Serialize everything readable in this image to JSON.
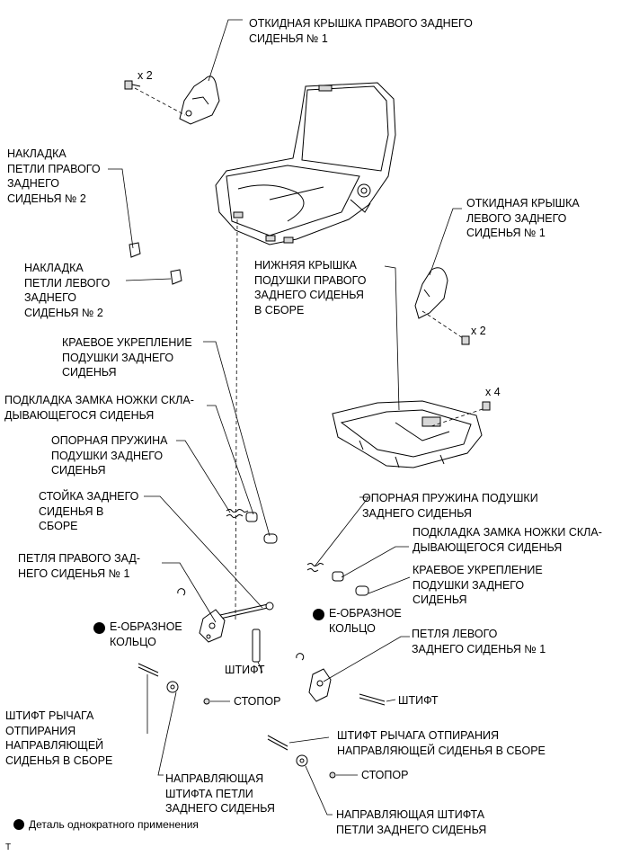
{
  "labels": {
    "right_cover": "ОТКИДНАЯ КРЫШКА ПРАВОГО ЗАДНЕГО\nСИДЕНЬЯ № 1",
    "left_cover": "ОТКИДНАЯ КРЫШКА\nЛЕВОГО ЗАДНЕГО\nСИДЕНЬЯ № 1",
    "right_hinge_cover": "НАКЛАДКА\nПЕТЛИ ПРАВОГО\nЗАДНЕГО\nСИДЕНЬЯ № 2",
    "left_hinge_cover": "НАКЛАДКА\nПЕТЛИ ЛЕВОГО\nЗАДНЕГО\nСИДЕНЬЯ № 2",
    "lower_cushion_cover": "НИЖНЯЯ КРЫШКА\nПОДУШКИ ПРАВОГО\nЗАДНЕГО СИДЕНЬЯ\nВ СБОРЕ",
    "cushion_edge_left": "КРАЕВОЕ УКРЕПЛЕНИЕ\nПОДУШКИ ЗАДНЕГО\nСИДЕНЬЯ",
    "leg_lock_pad_left": "ПОДКЛАДКА ЗАМКА НОЖКИ СКЛА-\nДЫВАЮЩЕГОСЯ СИДЕНЬЯ",
    "support_spring_left": "ОПОРНАЯ ПРУЖИНА\nПОДУШКИ ЗАДНЕГО\nСИДЕНЬЯ",
    "leg_assembly": "СТОЙКА ЗАДНЕГО\nСИДЕНЬЯ В\nСБОРЕ",
    "right_hinge": "ПЕТЛЯ ПРАВОГО ЗАД-\nНЕГО СИДЕНЬЯ № 1",
    "e_ring_left": "Е-ОБРАЗНОЕ\nКОЛЬЦО",
    "pin_left": "ШТИФТ",
    "release_pin_left": "ШТИФТ РЫЧАГА\nОТПИРАНИЯ\nНАПРАВЛЯЮЩЕЙ\nСИДЕНЬЯ В СБОРЕ",
    "stopper_left": "СТОПОР",
    "guide_left": "НАПРАВЛЯЮЩАЯ\nШТИФТА ПЕТЛИ\nЗАДНЕГО СИДЕНЬЯ",
    "support_spring_right": "ОПОРНАЯ ПРУЖИНА ПОДУШКИ\nЗАДНЕГО СИДЕНЬЯ",
    "leg_lock_pad_right": "ПОДКЛАДКА ЗАМКА НОЖКИ СКЛА-\nДЫВАЮЩЕГОСЯ СИДЕНЬЯ",
    "cushion_edge_right": "КРАЕВОЕ УКРЕПЛЕНИЕ\nПОДУШКИ ЗАДНЕГО\nСИДЕНЬЯ",
    "e_ring_right": "Е-ОБРАЗНОЕ\nКОЛЬЦО",
    "left_hinge": "ПЕТЛЯ ЛЕВОГО\nЗАДНЕГО СИДЕНЬЯ № 1",
    "pin_right": "ШТИФТ",
    "release_pin_right": "ШТИФТ РЫЧАГА ОТПИРАНИЯ\nНАПРАВЛЯЮЩЕЙ СИДЕНЬЯ В СБОРЕ",
    "stopper_right": "СТОПОР",
    "guide_right": "НАПРАВЛЯЮЩАЯ ШТИФТА\nПЕТЛИ ЗАДНЕГО СИДЕНЬЯ",
    "qty_right_cover_bolts": "x 2",
    "qty_left_cover_bolts": "x 2",
    "qty_lower_cover_bolts": "x 4"
  },
  "legend": {
    "text": "Деталь однократного применения"
  },
  "corner_mark": "T"
}
